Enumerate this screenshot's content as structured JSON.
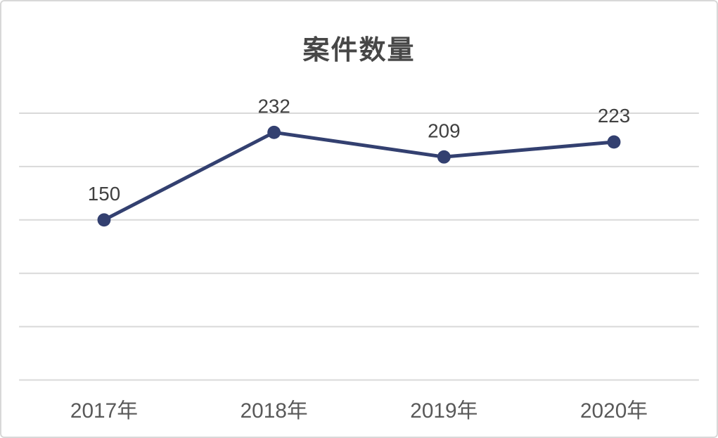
{
  "chart_data": {
    "type": "line",
    "title": "案件数量",
    "categories": [
      "2017年",
      "2018年",
      "2019年",
      "2020年"
    ],
    "series": [
      {
        "name": "案件数量",
        "values": [
          150,
          232,
          209,
          223
        ]
      }
    ],
    "data_labels": [
      150,
      232,
      209,
      223
    ],
    "xlabel": "",
    "ylabel": "",
    "ylim": [
      0,
      250
    ],
    "grid_step": 50,
    "grid": "horizontal",
    "legend_position": "none",
    "colors": {
      "line": "#334070",
      "marker": "#334070",
      "gridline": "#d9d9d9",
      "data_label": "#404040",
      "axis_label": "#595959",
      "title": "#474747",
      "card_border": "#d8d8d8",
      "background": "#ffffff"
    }
  }
}
